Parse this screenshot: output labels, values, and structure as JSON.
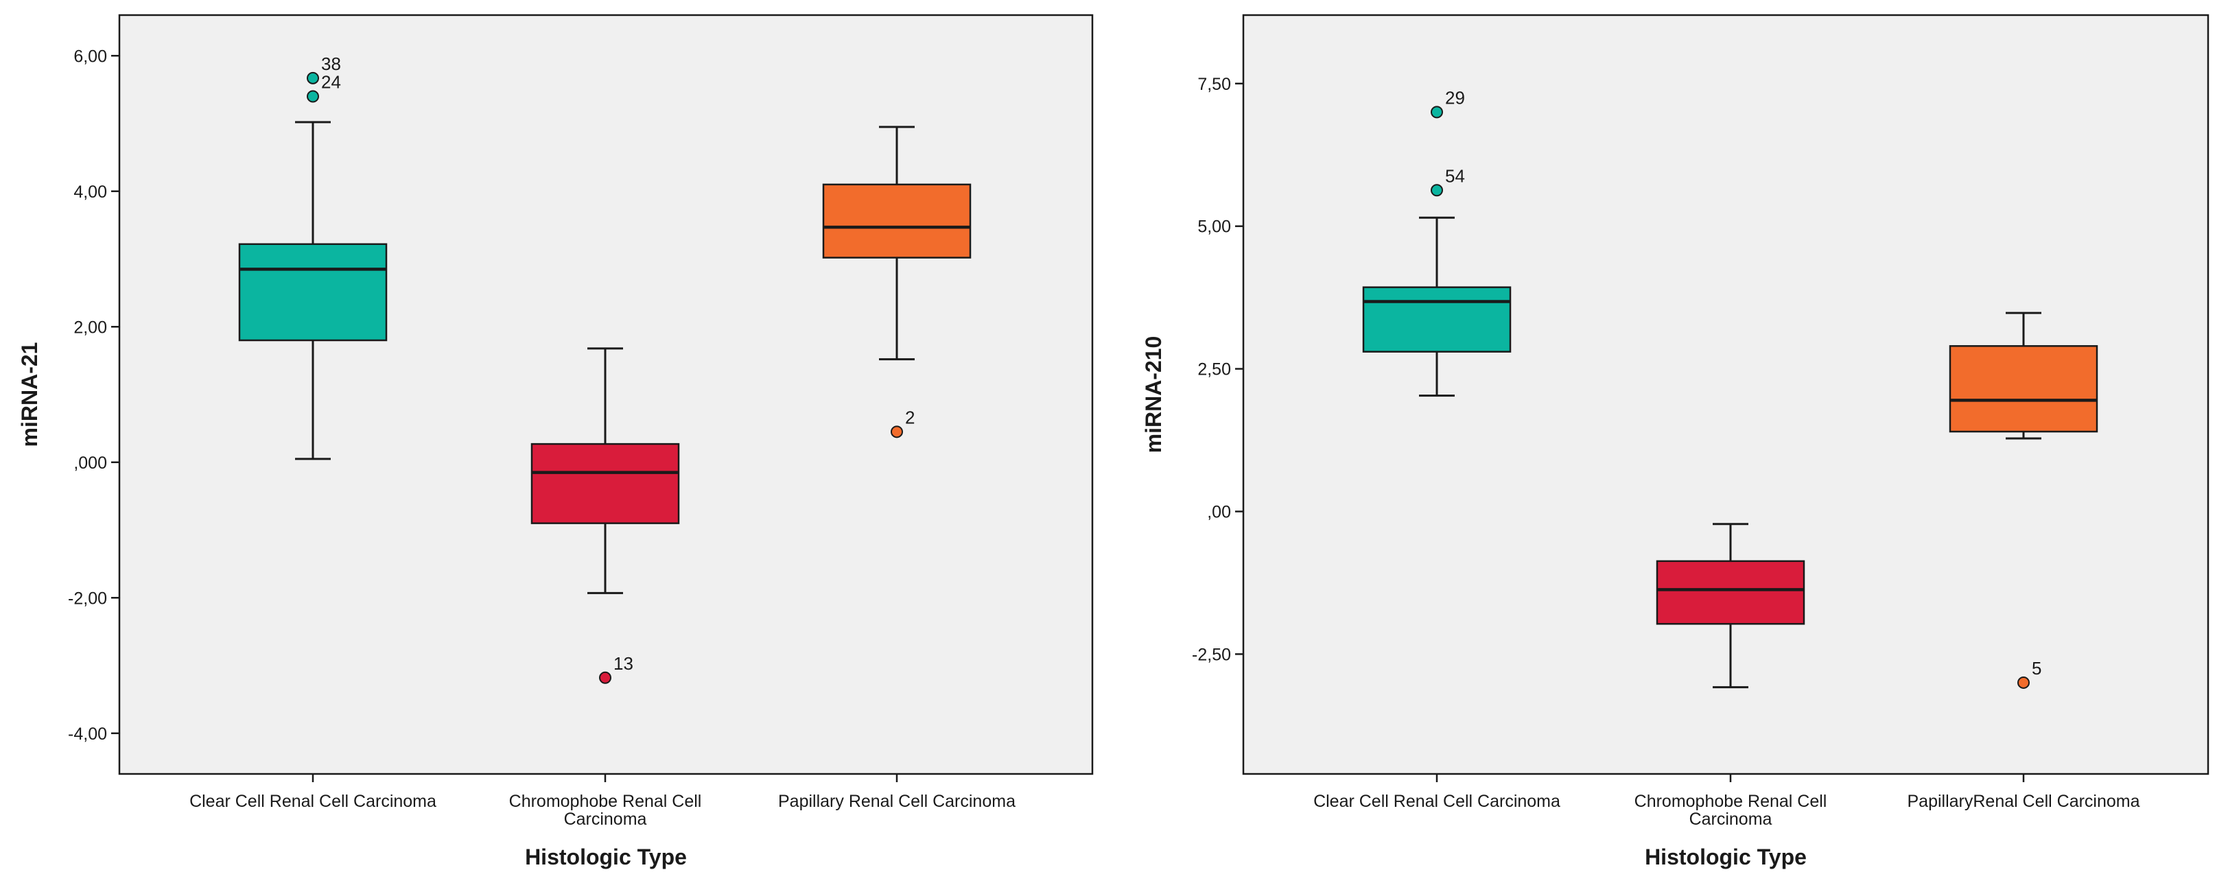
{
  "colors": {
    "clear_cell": "#0BB5A0",
    "chromophobe": "#D91C3B",
    "papillary": "#F26C2C",
    "plot_background": "#F0F0F0",
    "stroke": "#1a1a1a"
  },
  "chart_data": [
    {
      "type": "box",
      "title": "",
      "xlabel": "Histologic Type",
      "ylabel": "miRNA-21",
      "ylim": [
        -4.6,
        6.6
      ],
      "yticks": [
        {
          "value": 6,
          "label": "6,00"
        },
        {
          "value": 4,
          "label": "4,00"
        },
        {
          "value": 2,
          "label": "2,00"
        },
        {
          "value": 0,
          "label": ",000"
        },
        {
          "value": -2,
          "label": "-2,00"
        },
        {
          "value": -4,
          "label": "-4,00"
        }
      ],
      "categories": [
        {
          "label_lines": [
            "Clear Cell Renal Cell Carcinoma"
          ],
          "color_key": "clear_cell",
          "whisker_low": 0.05,
          "q1": 1.8,
          "median": 2.85,
          "q3": 3.22,
          "whisker_high": 5.02,
          "outliers": [
            {
              "value": 5.67,
              "label": "38"
            },
            {
              "value": 5.4,
              "label": "24"
            }
          ]
        },
        {
          "label_lines": [
            "Chromophobe Renal Cell",
            "Carcinoma"
          ],
          "color_key": "chromophobe",
          "whisker_low": -1.93,
          "q1": -0.9,
          "median": -0.15,
          "q3": 0.27,
          "whisker_high": 1.68,
          "outliers": [
            {
              "value": -3.18,
              "label": "13"
            }
          ]
        },
        {
          "label_lines": [
            "Papillary Renal Cell Carcinoma"
          ],
          "color_key": "papillary",
          "whisker_low": 1.52,
          "q1": 3.02,
          "median": 3.47,
          "q3": 4.1,
          "whisker_high": 4.95,
          "outliers": [
            {
              "value": 0.45,
              "label": "2"
            }
          ]
        }
      ]
    },
    {
      "type": "box",
      "title": "",
      "xlabel": "Histologic Type",
      "ylabel": "miRNA-210",
      "ylim": [
        -4.6,
        8.7
      ],
      "yticks": [
        {
          "value": 7.5,
          "label": "7,50"
        },
        {
          "value": 5,
          "label": "5,00"
        },
        {
          "value": 2.5,
          "label": "2,50"
        },
        {
          "value": 0,
          "label": ",00"
        },
        {
          "value": -2.5,
          "label": "-2,50"
        }
      ],
      "categories": [
        {
          "label_lines": [
            "Clear Cell Renal Cell Carcinoma"
          ],
          "color_key": "clear_cell",
          "whisker_low": 2.03,
          "q1": 2.8,
          "median": 3.68,
          "q3": 3.93,
          "whisker_high": 5.15,
          "outliers": [
            {
              "value": 7.0,
              "label": "29"
            },
            {
              "value": 5.63,
              "label": "54"
            }
          ]
        },
        {
          "label_lines": [
            "Chromophobe Renal Cell",
            "Carcinoma"
          ],
          "color_key": "chromophobe",
          "whisker_low": -3.08,
          "q1": -1.97,
          "median": -1.37,
          "q3": -0.87,
          "whisker_high": -0.22,
          "outliers": []
        },
        {
          "label_lines": [
            "PapillaryRenal Cell Carcinoma"
          ],
          "color_key": "papillary",
          "whisker_low": 1.28,
          "q1": 1.4,
          "median": 1.95,
          "q3": 2.9,
          "whisker_high": 3.48,
          "outliers": [
            {
              "value": -3.0,
              "label": "5"
            }
          ]
        }
      ]
    }
  ]
}
